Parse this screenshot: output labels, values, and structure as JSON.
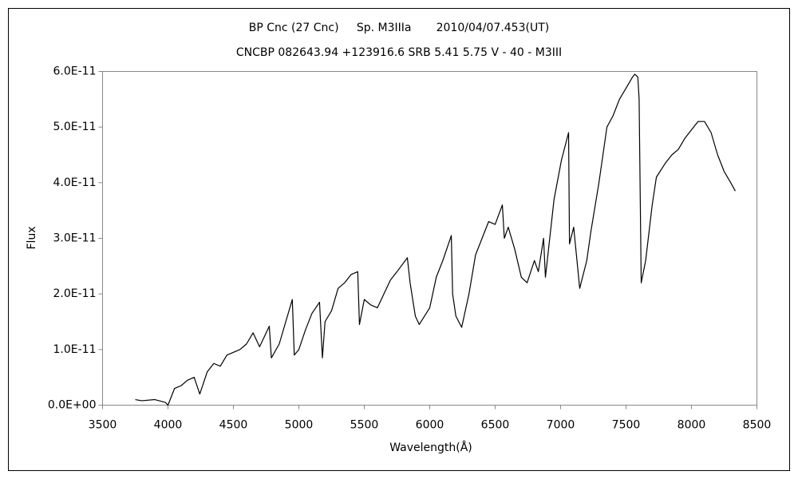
{
  "chart_data": {
    "type": "line",
    "title": "BP Cnc (27 Cnc)     Sp. M3IIIa       2010/04/07.453(UT)",
    "subtitle": "CNCBP 082643.94 +123916.6 SRB 5.41 5.75 V - 40 - M3III",
    "x_label": "Wavelength(Å)",
    "y_label": "Flux",
    "xlim": [
      3500,
      8500
    ],
    "xticks": [
      3500,
      4000,
      4500,
      5000,
      5500,
      6000,
      6500,
      7000,
      7500,
      8000,
      8500
    ],
    "ylim": [
      0,
      6e-11
    ],
    "yticks": [
      {
        "value": 0,
        "label": "0.0E+00"
      },
      {
        "value": 1e-11,
        "label": "1.0E-11"
      },
      {
        "value": 2e-11,
        "label": "2.0E-11"
      },
      {
        "value": 3e-11,
        "label": "3.0E-11"
      },
      {
        "value": 4e-11,
        "label": "4.0E-11"
      },
      {
        "value": 5e-11,
        "label": "5.0E-11"
      },
      {
        "value": 6e-11,
        "label": "6.0E-11"
      }
    ],
    "grid": false,
    "color": "#000000",
    "x": [
      3750,
      3800,
      3900,
      3980,
      4000,
      4050,
      4100,
      4150,
      4200,
      4243,
      4300,
      4350,
      4400,
      4450,
      4500,
      4550,
      4600,
      4650,
      4700,
      4774,
      4790,
      4850,
      4900,
      4950,
      4965,
      5000,
      5050,
      5100,
      5158,
      5180,
      5200,
      5250,
      5300,
      5350,
      5400,
      5450,
      5463,
      5500,
      5550,
      5600,
      5650,
      5700,
      5750,
      5829,
      5850,
      5890,
      5920,
      6000,
      6050,
      6100,
      6165,
      6175,
      6200,
      6244,
      6300,
      6350,
      6400,
      6450,
      6500,
      6555,
      6570,
      6600,
      6650,
      6700,
      6744,
      6800,
      6830,
      6870,
      6884,
      6950,
      7006,
      7061,
      7068,
      7100,
      7146,
      7200,
      7230,
      7293,
      7354,
      7400,
      7450,
      7500,
      7550,
      7567,
      7590,
      7600,
      7616,
      7650,
      7700,
      7732,
      7800,
      7850,
      7900,
      7950,
      8000,
      8050,
      8100,
      8150,
      8200,
      8250,
      8300,
      8335
    ],
    "values": [
      1e-12,
      8e-13,
      1e-12,
      5e-13,
      0,
      3e-12,
      3.5e-12,
      4.5e-12,
      5e-12,
      2e-12,
      6e-12,
      7.5e-12,
      7e-12,
      9e-12,
      9.5e-12,
      1e-11,
      1.1e-11,
      1.3e-11,
      1.05e-11,
      1.42e-11,
      8.5e-12,
      1.1e-11,
      1.5e-11,
      1.9e-11,
      9e-12,
      1e-11,
      1.35e-11,
      1.65e-11,
      1.85e-11,
      8.5e-12,
      1.5e-11,
      1.7e-11,
      2.1e-11,
      2.2e-11,
      2.35e-11,
      2.4e-11,
      1.45e-11,
      1.9e-11,
      1.8e-11,
      1.75e-11,
      2e-11,
      2.25e-11,
      2.4e-11,
      2.65e-11,
      2.2e-11,
      1.6e-11,
      1.45e-11,
      1.75e-11,
      2.3e-11,
      2.6e-11,
      3.05e-11,
      2e-11,
      1.6e-11,
      1.4e-11,
      2e-11,
      2.7e-11,
      3e-11,
      3.3e-11,
      3.25e-11,
      3.6e-11,
      3e-11,
      3.2e-11,
      2.8e-11,
      2.3e-11,
      2.2e-11,
      2.6e-11,
      2.4e-11,
      3e-11,
      2.3e-11,
      3.7e-11,
      4.4e-11,
      4.9e-11,
      2.9e-11,
      3.2e-11,
      2.1e-11,
      2.6e-11,
      3.1e-11,
      4e-11,
      5e-11,
      5.2e-11,
      5.5e-11,
      5.7e-11,
      5.9e-11,
      5.95e-11,
      5.9e-11,
      5.5e-11,
      2.2e-11,
      2.6e-11,
      3.6e-11,
      4.1e-11,
      4.35e-11,
      4.5e-11,
      4.6e-11,
      4.8e-11,
      4.95e-11,
      5.1e-11,
      5.1e-11,
      4.9e-11,
      4.5e-11,
      4.2e-11,
      4e-11,
      3.85e-11
    ]
  }
}
